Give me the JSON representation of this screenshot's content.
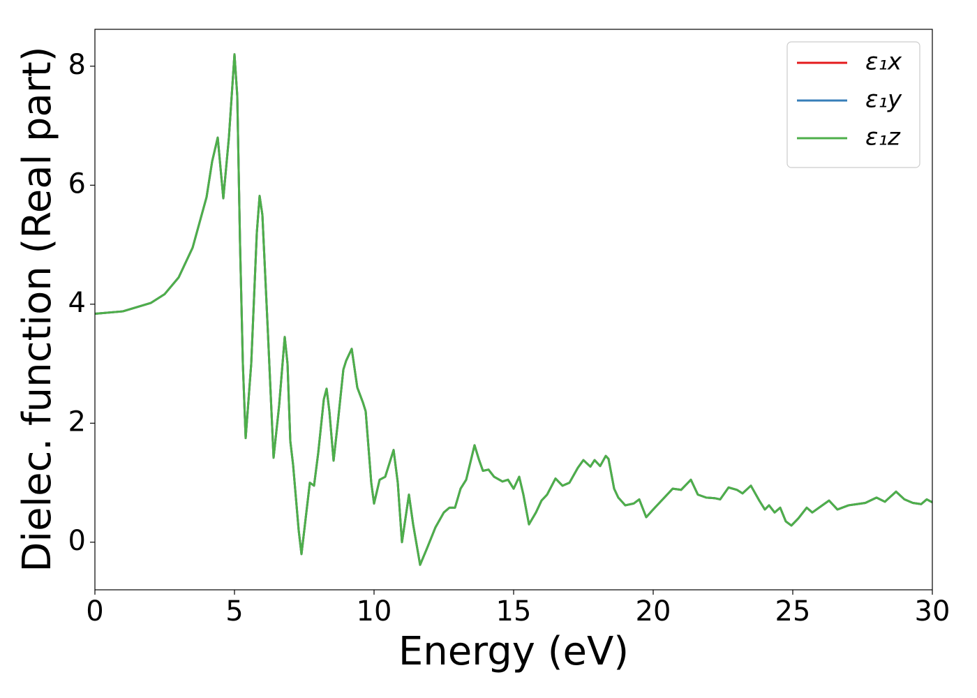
{
  "chart_data": {
    "type": "line",
    "xlabel": "Energy (eV)",
    "ylabel": "Dielec. function (Real part)",
    "x": [
      0,
      1,
      2,
      2.5,
      3,
      3.5,
      4,
      4.2,
      4.4,
      4.6,
      4.8,
      5,
      5.1,
      5.2,
      5.3,
      5.4,
      5.6,
      5.8,
      5.9,
      6,
      6.2,
      6.4,
      6.6,
      6.8,
      6.9,
      7,
      7.1,
      7.3,
      7.4,
      7.55,
      7.7,
      7.85,
      8,
      8.2,
      8.3,
      8.4,
      8.55,
      8.7,
      8.9,
      9,
      9.2,
      9.4,
      9.6,
      9.7,
      9.9,
      10,
      10.2,
      10.4,
      10.7,
      10.85,
      11,
      11.25,
      11.4,
      11.65,
      11.9,
      12.2,
      12.5,
      12.7,
      12.9,
      13.1,
      13.3,
      13.6,
      13.75,
      13.9,
      14.1,
      14.3,
      14.6,
      14.8,
      15,
      15.2,
      15.35,
      15.55,
      15.8,
      16,
      16.2,
      16.5,
      16.75,
      17,
      17.3,
      17.5,
      17.75,
      17.9,
      18.1,
      18.3,
      18.4,
      18.6,
      18.75,
      19,
      19.3,
      19.5,
      19.75,
      20,
      20.3,
      20.7,
      21,
      21.35,
      21.6,
      21.9,
      22.2,
      22.4,
      22.7,
      23,
      23.2,
      23.5,
      23.8,
      24,
      24.15,
      24.35,
      24.55,
      24.75,
      24.95,
      25.2,
      25.5,
      25.7,
      26,
      26.3,
      26.6,
      27,
      27.3,
      27.6,
      28,
      28.3,
      28.7,
      29,
      29.3,
      29.6,
      29.8,
      30
    ],
    "series": [
      {
        "name": "ε₁x",
        "color": "#e41a1c",
        "values": [
          3.84,
          3.88,
          4.02,
          4.17,
          4.45,
          4.95,
          5.8,
          6.4,
          6.8,
          5.78,
          6.8,
          8.2,
          7.5,
          5.0,
          3.0,
          1.75,
          3.0,
          5.2,
          5.82,
          5.5,
          3.5,
          1.42,
          2.3,
          3.45,
          3.0,
          1.7,
          1.3,
          0.2,
          -0.2,
          0.4,
          1.0,
          0.95,
          1.5,
          2.4,
          2.58,
          2.2,
          1.37,
          2.0,
          2.9,
          3.05,
          3.25,
          2.6,
          2.35,
          2.2,
          1.0,
          0.65,
          1.05,
          1.1,
          1.55,
          1.0,
          0.0,
          0.8,
          0.3,
          -0.38,
          -0.1,
          0.25,
          0.5,
          0.58,
          0.58,
          0.9,
          1.05,
          1.63,
          1.4,
          1.2,
          1.22,
          1.1,
          1.02,
          1.05,
          0.9,
          1.1,
          0.8,
          0.3,
          0.5,
          0.7,
          0.8,
          1.07,
          0.95,
          1.0,
          1.25,
          1.38,
          1.27,
          1.38,
          1.28,
          1.45,
          1.4,
          0.9,
          0.75,
          0.62,
          0.65,
          0.72,
          0.42,
          0.55,
          0.7,
          0.9,
          0.88,
          1.05,
          0.8,
          0.75,
          0.74,
          0.72,
          0.92,
          0.88,
          0.82,
          0.95,
          0.7,
          0.55,
          0.62,
          0.5,
          0.58,
          0.35,
          0.28,
          0.4,
          0.58,
          0.5,
          0.6,
          0.7,
          0.55,
          0.62,
          0.64,
          0.66,
          0.75,
          0.68,
          0.85,
          0.72,
          0.66,
          0.64,
          0.72,
          0.67
        ]
      },
      {
        "name": "ε₁y",
        "color": "#377eb8",
        "values": [
          3.84,
          3.88,
          4.02,
          4.17,
          4.45,
          4.95,
          5.8,
          6.4,
          6.8,
          5.78,
          6.8,
          8.2,
          7.5,
          5.0,
          3.0,
          1.75,
          3.0,
          5.2,
          5.82,
          5.5,
          3.5,
          1.42,
          2.3,
          3.45,
          3.0,
          1.7,
          1.3,
          0.2,
          -0.2,
          0.4,
          1.0,
          0.95,
          1.5,
          2.4,
          2.58,
          2.2,
          1.37,
          2.0,
          2.9,
          3.05,
          3.25,
          2.6,
          2.35,
          2.2,
          1.0,
          0.65,
          1.05,
          1.1,
          1.55,
          1.0,
          0.0,
          0.8,
          0.3,
          -0.38,
          -0.1,
          0.25,
          0.5,
          0.58,
          0.58,
          0.9,
          1.05,
          1.63,
          1.4,
          1.2,
          1.22,
          1.1,
          1.02,
          1.05,
          0.9,
          1.1,
          0.8,
          0.3,
          0.5,
          0.7,
          0.8,
          1.07,
          0.95,
          1.0,
          1.25,
          1.38,
          1.27,
          1.38,
          1.28,
          1.45,
          1.4,
          0.9,
          0.75,
          0.62,
          0.65,
          0.72,
          0.42,
          0.55,
          0.7,
          0.9,
          0.88,
          1.05,
          0.8,
          0.75,
          0.74,
          0.72,
          0.92,
          0.88,
          0.82,
          0.95,
          0.7,
          0.55,
          0.62,
          0.5,
          0.58,
          0.35,
          0.28,
          0.4,
          0.58,
          0.5,
          0.6,
          0.7,
          0.55,
          0.62,
          0.64,
          0.66,
          0.75,
          0.68,
          0.85,
          0.72,
          0.66,
          0.64,
          0.72,
          0.67
        ]
      },
      {
        "name": "ε₁z",
        "color": "#4daf4a",
        "values": [
          3.84,
          3.88,
          4.02,
          4.17,
          4.45,
          4.95,
          5.8,
          6.4,
          6.8,
          5.78,
          6.8,
          8.2,
          7.5,
          5.0,
          3.0,
          1.75,
          3.0,
          5.2,
          5.82,
          5.5,
          3.5,
          1.42,
          2.3,
          3.45,
          3.0,
          1.7,
          1.3,
          0.2,
          -0.2,
          0.4,
          1.0,
          0.95,
          1.5,
          2.4,
          2.58,
          2.2,
          1.37,
          2.0,
          2.9,
          3.05,
          3.25,
          2.6,
          2.35,
          2.2,
          1.0,
          0.65,
          1.05,
          1.1,
          1.55,
          1.0,
          0.0,
          0.8,
          0.3,
          -0.38,
          -0.1,
          0.25,
          0.5,
          0.58,
          0.58,
          0.9,
          1.05,
          1.63,
          1.4,
          1.2,
          1.22,
          1.1,
          1.02,
          1.05,
          0.9,
          1.1,
          0.8,
          0.3,
          0.5,
          0.7,
          0.8,
          1.07,
          0.95,
          1.0,
          1.25,
          1.38,
          1.27,
          1.38,
          1.28,
          1.45,
          1.4,
          0.9,
          0.75,
          0.62,
          0.65,
          0.72,
          0.42,
          0.55,
          0.7,
          0.9,
          0.88,
          1.05,
          0.8,
          0.75,
          0.74,
          0.72,
          0.92,
          0.88,
          0.82,
          0.95,
          0.7,
          0.55,
          0.62,
          0.5,
          0.58,
          0.35,
          0.28,
          0.4,
          0.58,
          0.5,
          0.6,
          0.7,
          0.55,
          0.62,
          0.64,
          0.66,
          0.75,
          0.68,
          0.85,
          0.72,
          0.66,
          0.64,
          0.72,
          0.67
        ]
      }
    ],
    "xlim": [
      0,
      30
    ],
    "ylim": [
      -0.8,
      8.62
    ],
    "xticks": [
      0,
      5,
      10,
      15,
      20,
      25,
      30
    ],
    "yticks": [
      0,
      2,
      4,
      6,
      8
    ],
    "legend": "upper right",
    "grid": false
  }
}
